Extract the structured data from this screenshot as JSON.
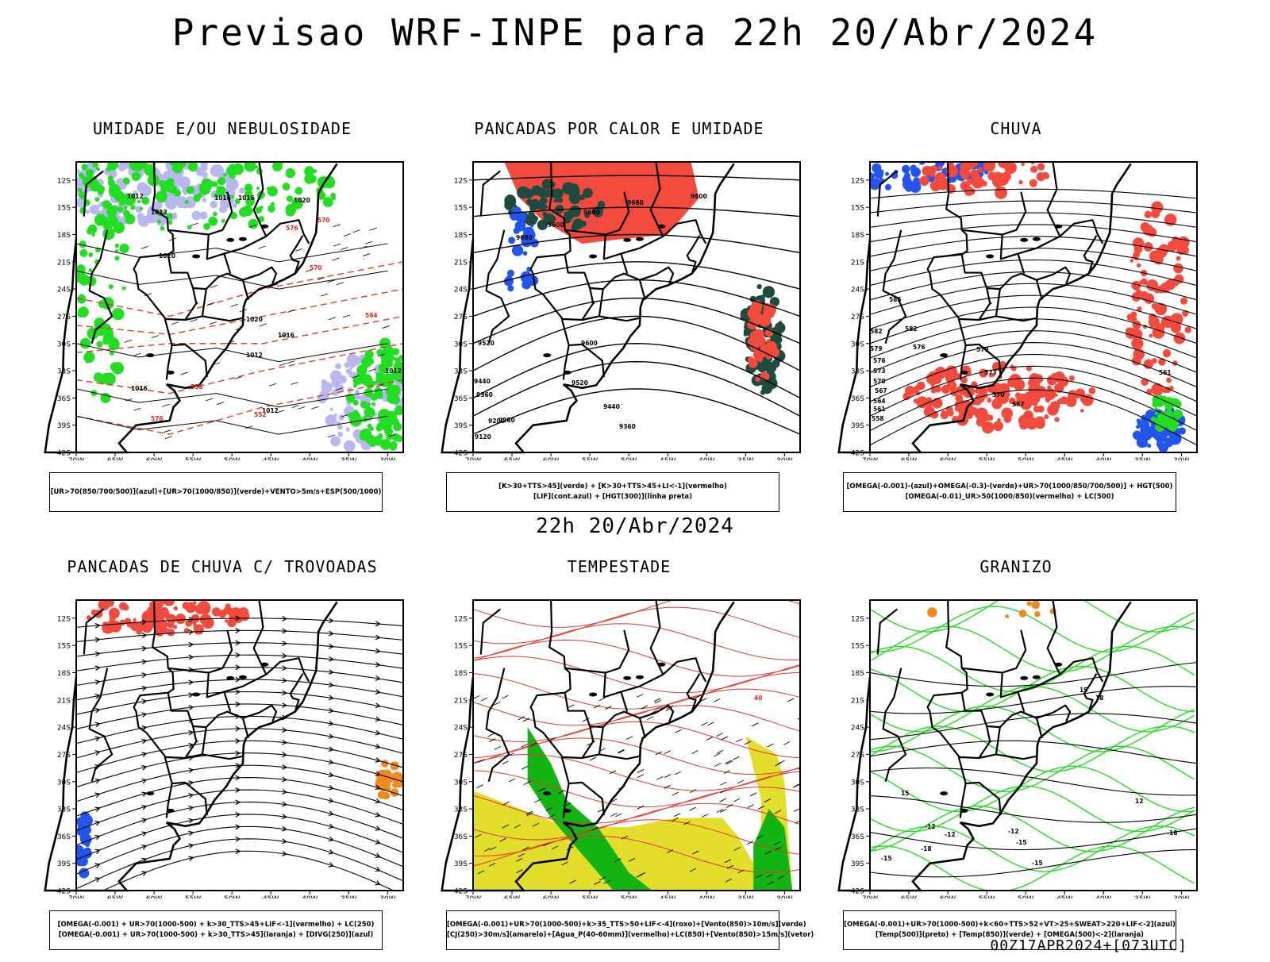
{
  "header": {
    "title": "Previsao WRF-INPE  para 22h 20/Abr/2024"
  },
  "mid_time": "22h 20/Abr/2024",
  "footer": "00Z17APR2024+[073UTC]",
  "axes": {
    "lat": [
      "12S",
      "15S",
      "18S",
      "21S",
      "24S",
      "27S",
      "30S",
      "33S",
      "36S",
      "39S",
      "42S"
    ],
    "lon": [
      "70W",
      "65W",
      "60W",
      "55W",
      "50W",
      "45W",
      "40W",
      "35W",
      "30W"
    ]
  },
  "panels": [
    {
      "title": "UMIDADE E/OU NEBULOSIDADE",
      "legend": [
        "[UR>70(850/700/500)](azul)+[UR>70(1000/850)](verde)+VENTO>5m/s+ESP(500/1000)"
      ],
      "labels": [
        "1012",
        "1012",
        "1016",
        "1016",
        "1020",
        "1020",
        "1020",
        "1016",
        "1012",
        "1016",
        "1012",
        "1012",
        "570",
        "576",
        "570",
        "564",
        "558",
        "552",
        "576"
      ]
    },
    {
      "title": "PANCADAS POR CALOR E UMIDADE",
      "legend": [
        "[K>30+TTS>45](verde) + [K>30+TTS>45+LI<-1](vermelho)",
        "[LIF](cont.azul) + [HGT(300)](linha preta)"
      ],
      "labels": [
        "9680",
        "9680",
        "9680",
        "9600",
        "9600",
        "9520",
        "9520",
        "9440",
        "9440",
        "9360",
        "9360",
        "9280",
        "9200",
        "9120",
        "9600"
      ]
    },
    {
      "title": "CHUVA",
      "legend": [
        "[OMEGA(-0.001)-(azul)+OMEGA(-0.3)-(verde)+UR>70(1000/850/700/500)] + HGT(500)",
        "[OMEGA(-0.01)_UR>50(1000/850)(vermelho) + LC(500)"
      ],
      "labels": [
        "585",
        "582",
        "579",
        "576",
        "573",
        "570",
        "567",
        "564",
        "561",
        "558",
        "582",
        "579",
        "576",
        "573",
        "570",
        "567",
        "561"
      ]
    },
    {
      "title": "PANCADAS DE CHUVA C/ TROVOADAS",
      "legend": [
        "[OMEGA(-0.001) + UR>70(1000-500) + k>30_TTS>45+LIF<-1](vermelho) + LC(250)",
        "[OMEGA(-0.001) + UR>70(1000-500) + k>30_TTS>45](laranja) + [DIVG(250)](azul)"
      ],
      "labels": []
    },
    {
      "title": "TEMPESTADE",
      "legend": [
        "[OMEGA(-0.001)+UR>70(1000-500)+k>35_TTS>50+LIF<-4](roxo)+[Vento(850)>10m/s](verde)",
        "[CJ(250)>30m/s](amarelo)+[Agua_P(40-60mm)](vermelho)+LC(850)+[Vento(850)>15m/s](vetor)"
      ],
      "labels": [
        "40"
      ]
    },
    {
      "title": "GRANIZO",
      "legend": [
        "[OMEGA(-0.001)+UR>70(1000-500)+k<60+TTS>52+VT>25+SWEAT>220+LIF<-2](azul)",
        "[Temp(500)](preto) + [Temp(850)](verde) + [OMEGA(500)<-2](laranja)"
      ],
      "labels": [
        "-12",
        "-12",
        "-12",
        "-15",
        "-15",
        "-18",
        "-18",
        "-15",
        "15",
        "15",
        "12",
        "18"
      ]
    }
  ],
  "colors": {
    "red": "#f24b3d",
    "green": "#22dd22",
    "blue": "#2255ee",
    "lavender": "#b9b7f0",
    "darkgreen": "#1f4a3f",
    "yellow": "#e3de2c",
    "orange": "#f08a1e",
    "darkgreen2": "#14b414"
  }
}
